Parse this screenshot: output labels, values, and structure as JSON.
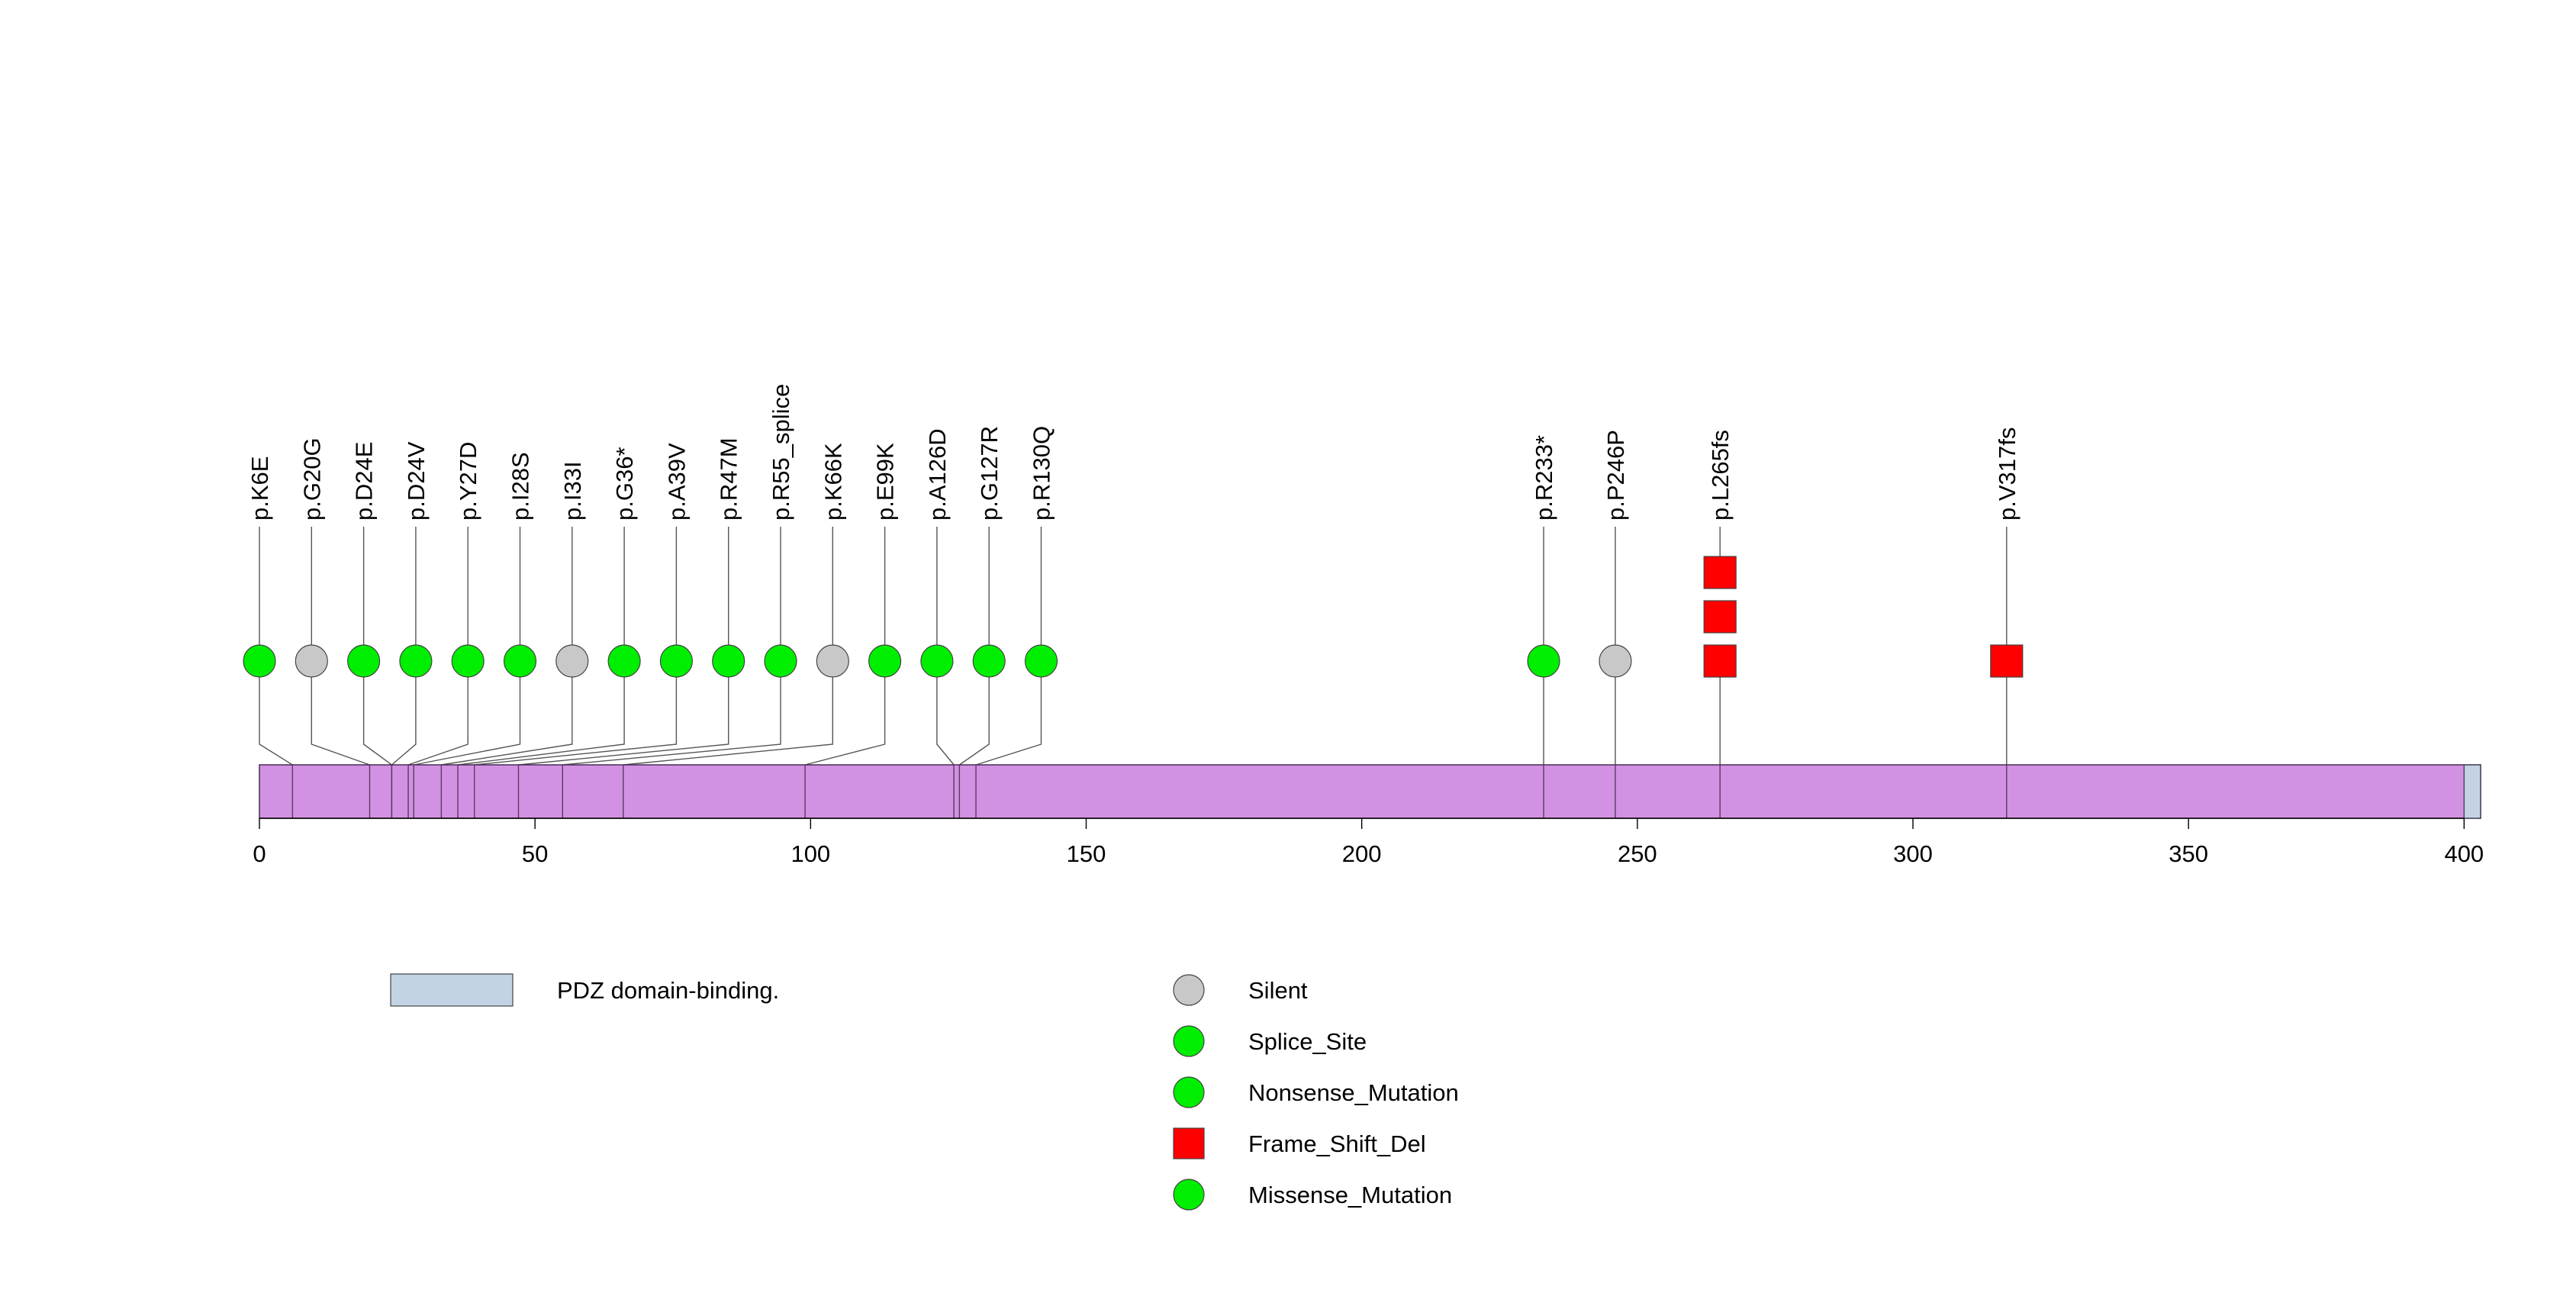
{
  "chart_data": {
    "type": "lollipop",
    "protein_length": 403,
    "xlim": [
      0,
      403
    ],
    "x_ticks": [
      0,
      50,
      100,
      150,
      200,
      250,
      300,
      350,
      400
    ],
    "domains": [
      {
        "name": "PDZ domain-binding.",
        "start": 400,
        "end": 403,
        "color": "#c3d3e3"
      }
    ],
    "protein_color": "#d292e3",
    "mutations": [
      {
        "label": "p.K6E",
        "pos": 6,
        "count": 1,
        "type": "Missense_Mutation"
      },
      {
        "label": "p.G20G",
        "pos": 20,
        "count": 1,
        "type": "Silent"
      },
      {
        "label": "p.D24E",
        "pos": 24,
        "count": 1,
        "type": "Missense_Mutation"
      },
      {
        "label": "p.D24V",
        "pos": 24,
        "count": 1,
        "type": "Missense_Mutation"
      },
      {
        "label": "p.Y27D",
        "pos": 27,
        "count": 1,
        "type": "Missense_Mutation"
      },
      {
        "label": "p.I28S",
        "pos": 28,
        "count": 1,
        "type": "Missense_Mutation"
      },
      {
        "label": "p.I33I",
        "pos": 33,
        "count": 1,
        "type": "Silent"
      },
      {
        "label": "p.G36*",
        "pos": 36,
        "count": 1,
        "type": "Nonsense_Mutation"
      },
      {
        "label": "p.A39V",
        "pos": 39,
        "count": 1,
        "type": "Missense_Mutation"
      },
      {
        "label": "p.R47M",
        "pos": 47,
        "count": 1,
        "type": "Missense_Mutation"
      },
      {
        "label": "p.R55_splice",
        "pos": 55,
        "count": 1,
        "type": "Splice_Site"
      },
      {
        "label": "p.K66K",
        "pos": 66,
        "count": 1,
        "type": "Silent"
      },
      {
        "label": "p.E99K",
        "pos": 99,
        "count": 1,
        "type": "Missense_Mutation"
      },
      {
        "label": "p.A126D",
        "pos": 126,
        "count": 1,
        "type": "Missense_Mutation"
      },
      {
        "label": "p.G127R",
        "pos": 127,
        "count": 1,
        "type": "Missense_Mutation"
      },
      {
        "label": "p.R130Q",
        "pos": 130,
        "count": 1,
        "type": "Missense_Mutation"
      },
      {
        "label": "p.R233*",
        "pos": 233,
        "count": 1,
        "type": "Nonsense_Mutation"
      },
      {
        "label": "p.P246P",
        "pos": 246,
        "count": 1,
        "type": "Silent"
      },
      {
        "label": "p.L265fs",
        "pos": 265,
        "count": 3,
        "type": "Frame_Shift_Del"
      },
      {
        "label": "p.V317fs",
        "pos": 317,
        "count": 1,
        "type": "Frame_Shift_Del"
      }
    ],
    "legend": {
      "domains": [
        {
          "label": "PDZ domain-binding.",
          "color": "#c3d3e3"
        }
      ],
      "types": [
        {
          "label": "Silent",
          "shape": "circle",
          "color": "#c8c8c8"
        },
        {
          "label": "Splice_Site",
          "shape": "circle",
          "color": "#00ee00"
        },
        {
          "label": "Nonsense_Mutation",
          "shape": "circle",
          "color": "#00ee00"
        },
        {
          "label": "Frame_Shift_Del",
          "shape": "square",
          "color": "#ff0000"
        },
        {
          "label": "Missense_Mutation",
          "shape": "circle",
          "color": "#00ee00"
        }
      ]
    }
  }
}
